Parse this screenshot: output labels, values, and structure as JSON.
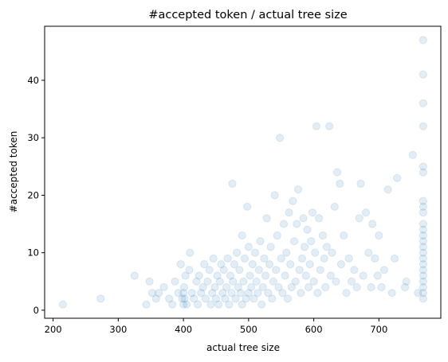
{
  "chart_data": {
    "type": "scatter",
    "title": "#accepted token / actual tree size",
    "xlabel": "actual tree size",
    "ylabel": "#accepted token",
    "xlim": [
      187,
      795
    ],
    "ylim": [
      -1.4,
      49.4
    ],
    "xticks": [
      200,
      300,
      400,
      500,
      600,
      700
    ],
    "yticks": [
      0,
      10,
      20,
      30,
      40
    ],
    "grid": false,
    "marker_color": "#1f77b4",
    "marker_opacity": 0.13,
    "series": [
      {
        "points": [
          [
            215,
            1
          ],
          [
            273,
            2
          ],
          [
            325,
            6
          ],
          [
            343,
            1
          ],
          [
            348,
            5
          ],
          [
            352,
            3
          ],
          [
            358,
            2
          ],
          [
            362,
            3
          ],
          [
            370,
            4
          ],
          [
            378,
            2
          ],
          [
            383,
            1
          ],
          [
            387,
            5
          ],
          [
            392,
            3
          ],
          [
            396,
            8
          ],
          [
            398,
            2
          ],
          [
            400,
            1
          ],
          [
            400,
            3
          ],
          [
            401,
            4
          ],
          [
            402,
            2
          ],
          [
            403,
            6
          ],
          [
            405,
            1
          ],
          [
            409,
            7
          ],
          [
            410,
            10
          ],
          [
            413,
            3
          ],
          [
            416,
            2
          ],
          [
            420,
            5
          ],
          [
            422,
            1
          ],
          [
            424,
            6
          ],
          [
            427,
            3
          ],
          [
            430,
            4
          ],
          [
            432,
            8
          ],
          [
            434,
            2
          ],
          [
            437,
            5
          ],
          [
            440,
            7
          ],
          [
            442,
            1
          ],
          [
            444,
            3
          ],
          [
            446,
            9
          ],
          [
            448,
            4
          ],
          [
            450,
            2
          ],
          [
            452,
            6
          ],
          [
            454,
            1
          ],
          [
            456,
            5
          ],
          [
            458,
            8
          ],
          [
            460,
            3
          ],
          [
            462,
            7
          ],
          [
            464,
            2
          ],
          [
            466,
            4
          ],
          [
            468,
            9
          ],
          [
            470,
            1
          ],
          [
            472,
            6
          ],
          [
            474,
            3
          ],
          [
            475,
            22
          ],
          [
            476,
            5
          ],
          [
            478,
            8
          ],
          [
            480,
            2
          ],
          [
            482,
            10
          ],
          [
            484,
            4
          ],
          [
            486,
            7
          ],
          [
            488,
            3
          ],
          [
            490,
            13
          ],
          [
            490,
            1
          ],
          [
            492,
            5
          ],
          [
            494,
            9
          ],
          [
            496,
            2
          ],
          [
            498,
            18
          ],
          [
            500,
            3
          ],
          [
            500,
            11
          ],
          [
            502,
            6
          ],
          [
            504,
            4
          ],
          [
            506,
            8
          ],
          [
            508,
            2
          ],
          [
            510,
            10
          ],
          [
            512,
            5
          ],
          [
            514,
            3
          ],
          [
            516,
            7
          ],
          [
            518,
            12
          ],
          [
            520,
            1
          ],
          [
            522,
            4
          ],
          [
            524,
            9
          ],
          [
            526,
            6
          ],
          [
            528,
            16
          ],
          [
            530,
            3
          ],
          [
            532,
            8
          ],
          [
            534,
            11
          ],
          [
            536,
            2
          ],
          [
            538,
            5
          ],
          [
            540,
            20
          ],
          [
            542,
            7
          ],
          [
            544,
            13
          ],
          [
            546,
            4
          ],
          [
            548,
            30
          ],
          [
            550,
            9
          ],
          [
            552,
            3
          ],
          [
            554,
            15
          ],
          [
            556,
            6
          ],
          [
            558,
            10
          ],
          [
            560,
            2
          ],
          [
            562,
            17
          ],
          [
            564,
            8
          ],
          [
            566,
            4
          ],
          [
            568,
            19
          ],
          [
            570,
            12
          ],
          [
            572,
            5
          ],
          [
            574,
            15
          ],
          [
            576,
            21
          ],
          [
            578,
            7
          ],
          [
            580,
            3
          ],
          [
            582,
            9
          ],
          [
            584,
            16
          ],
          [
            586,
            11
          ],
          [
            588,
            6
          ],
          [
            590,
            14
          ],
          [
            592,
            4
          ],
          [
            594,
            8
          ],
          [
            596,
            12
          ],
          [
            598,
            17
          ],
          [
            600,
            5
          ],
          [
            602,
            10
          ],
          [
            604,
            32
          ],
          [
            606,
            3
          ],
          [
            608,
            16
          ],
          [
            610,
            7
          ],
          [
            614,
            13
          ],
          [
            616,
            9
          ],
          [
            618,
            4
          ],
          [
            620,
            11
          ],
          [
            624,
            32
          ],
          [
            626,
            6
          ],
          [
            628,
            10
          ],
          [
            632,
            18
          ],
          [
            634,
            5
          ],
          [
            636,
            24
          ],
          [
            640,
            22
          ],
          [
            642,
            8
          ],
          [
            646,
            13
          ],
          [
            650,
            3
          ],
          [
            654,
            9
          ],
          [
            658,
            5
          ],
          [
            662,
            7
          ],
          [
            666,
            4
          ],
          [
            670,
            16
          ],
          [
            672,
            22
          ],
          [
            676,
            6
          ],
          [
            680,
            17
          ],
          [
            684,
            10
          ],
          [
            688,
            4
          ],
          [
            690,
            15
          ],
          [
            694,
            9
          ],
          [
            698,
            6
          ],
          [
            700,
            13
          ],
          [
            704,
            4
          ],
          [
            708,
            7
          ],
          [
            714,
            21
          ],
          [
            720,
            3
          ],
          [
            724,
            9
          ],
          [
            728,
            23
          ],
          [
            740,
            4
          ],
          [
            742,
            5
          ],
          [
            752,
            27
          ],
          [
            760,
            3
          ],
          [
            768,
            47
          ],
          [
            768,
            41
          ],
          [
            768,
            36
          ],
          [
            768,
            32
          ],
          [
            768,
            25
          ],
          [
            768,
            24
          ],
          [
            768,
            19
          ],
          [
            768,
            18
          ],
          [
            768,
            17
          ],
          [
            768,
            15
          ],
          [
            768,
            14
          ],
          [
            768,
            13
          ],
          [
            768,
            12
          ],
          [
            768,
            11
          ],
          [
            768,
            10
          ],
          [
            768,
            9
          ],
          [
            768,
            8
          ],
          [
            768,
            7
          ],
          [
            768,
            6
          ],
          [
            768,
            5
          ],
          [
            768,
            4
          ],
          [
            768,
            3
          ],
          [
            768,
            2
          ]
        ]
      }
    ]
  }
}
